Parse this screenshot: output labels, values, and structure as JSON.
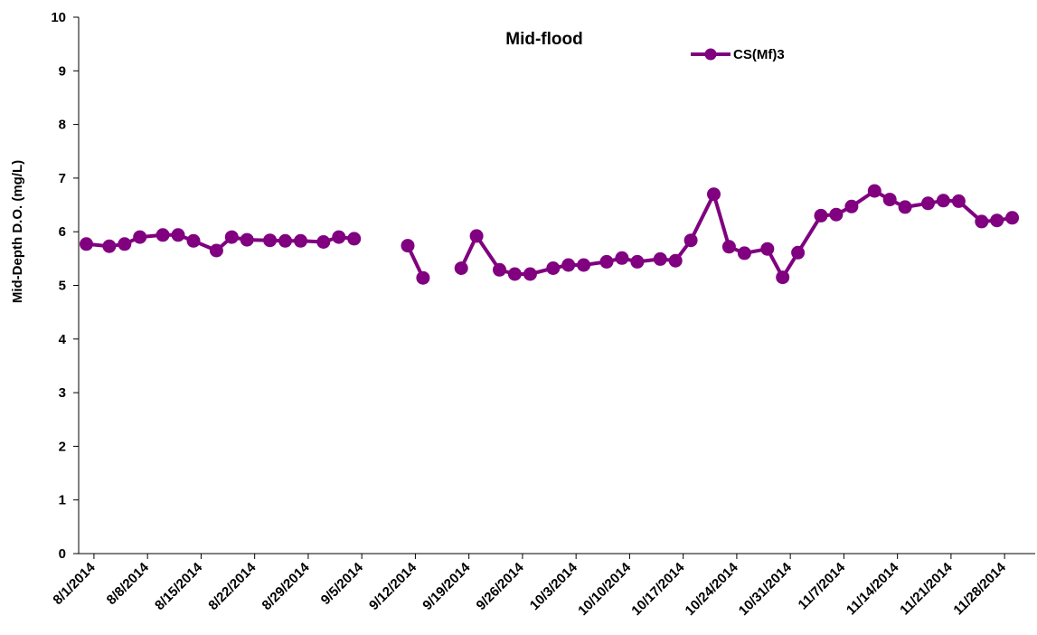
{
  "chart_data": {
    "type": "line",
    "title": "Mid-flood",
    "xlabel": "",
    "ylabel": "Mid-Depth D.O. (mg/L)",
    "ylim": [
      0,
      10
    ],
    "yticks": [
      "0",
      "1",
      "2",
      "3",
      "4",
      "5",
      "6",
      "7",
      "8",
      "9",
      "10"
    ],
    "xlim": [
      "2014-07-30",
      "2014-12-02"
    ],
    "xtick_labels": [
      "8/1/2014",
      "8/8/2014",
      "8/15/2014",
      "8/22/2014",
      "8/29/2014",
      "9/5/2014",
      "9/12/2014",
      "9/19/2014",
      "9/26/2014",
      "10/3/2014",
      "10/10/2014",
      "10/17/2014",
      "10/24/2014",
      "10/31/2014",
      "11/7/2014",
      "11/14/2014",
      "11/21/2014",
      "11/28/2014"
    ],
    "grid": false,
    "legend_position": "top-right",
    "series": [
      {
        "name": "CS(Mf)3",
        "color": "#800080",
        "points": [
          {
            "x": "2014-07-31",
            "y": 5.77
          },
          {
            "x": "2014-08-03",
            "y": 5.73
          },
          {
            "x": "2014-08-05",
            "y": 5.77
          },
          {
            "x": "2014-08-07",
            "y": 5.9
          },
          {
            "x": "2014-08-10",
            "y": 5.94
          },
          {
            "x": "2014-08-12",
            "y": 5.94
          },
          {
            "x": "2014-08-14",
            "y": 5.83
          },
          {
            "x": "2014-08-17",
            "y": 5.65
          },
          {
            "x": "2014-08-19",
            "y": 5.9
          },
          {
            "x": "2014-08-21",
            "y": 5.85
          },
          {
            "x": "2014-08-24",
            "y": 5.84
          },
          {
            "x": "2014-08-26",
            "y": 5.83
          },
          {
            "x": "2014-08-28",
            "y": 5.83
          },
          {
            "x": "2014-08-31",
            "y": 5.81
          },
          {
            "x": "2014-09-02",
            "y": 5.9
          },
          {
            "x": "2014-09-04",
            "y": 5.87
          },
          {
            "x": "2014-09-09",
            "y": null
          },
          {
            "x": "2014-09-11",
            "y": 5.74
          },
          {
            "x": "2014-09-13",
            "y": 5.14
          },
          {
            "x": "2014-09-15",
            "y": null
          },
          {
            "x": "2014-09-18",
            "y": 5.32
          },
          {
            "x": "2014-09-20",
            "y": 5.92
          },
          {
            "x": "2014-09-23",
            "y": 5.29
          },
          {
            "x": "2014-09-25",
            "y": 5.21
          },
          {
            "x": "2014-09-27",
            "y": 5.21
          },
          {
            "x": "2014-09-30",
            "y": 5.32
          },
          {
            "x": "2014-10-02",
            "y": 5.38
          },
          {
            "x": "2014-10-04",
            "y": 5.38
          },
          {
            "x": "2014-10-07",
            "y": 5.44
          },
          {
            "x": "2014-10-09",
            "y": 5.51
          },
          {
            "x": "2014-10-11",
            "y": 5.44
          },
          {
            "x": "2014-10-14",
            "y": 5.49
          },
          {
            "x": "2014-10-16",
            "y": 5.46
          },
          {
            "x": "2014-10-18",
            "y": 5.84
          },
          {
            "x": "2014-10-21",
            "y": 6.7
          },
          {
            "x": "2014-10-23",
            "y": 5.72
          },
          {
            "x": "2014-10-25",
            "y": 5.6
          },
          {
            "x": "2014-10-28",
            "y": 5.68
          },
          {
            "x": "2014-10-30",
            "y": 5.15
          },
          {
            "x": "2014-11-01",
            "y": 5.61
          },
          {
            "x": "2014-11-04",
            "y": 6.3
          },
          {
            "x": "2014-11-06",
            "y": 6.32
          },
          {
            "x": "2014-11-08",
            "y": 6.47
          },
          {
            "x": "2014-11-11",
            "y": 6.76
          },
          {
            "x": "2014-11-13",
            "y": 6.6
          },
          {
            "x": "2014-11-15",
            "y": 6.46
          },
          {
            "x": "2014-11-18",
            "y": 6.53
          },
          {
            "x": "2014-11-20",
            "y": 6.58
          },
          {
            "x": "2014-11-22",
            "y": 6.57
          },
          {
            "x": "2014-11-25",
            "y": 6.19
          },
          {
            "x": "2014-11-27",
            "y": 6.21
          },
          {
            "x": "2014-11-29",
            "y": 6.26
          }
        ]
      }
    ]
  }
}
